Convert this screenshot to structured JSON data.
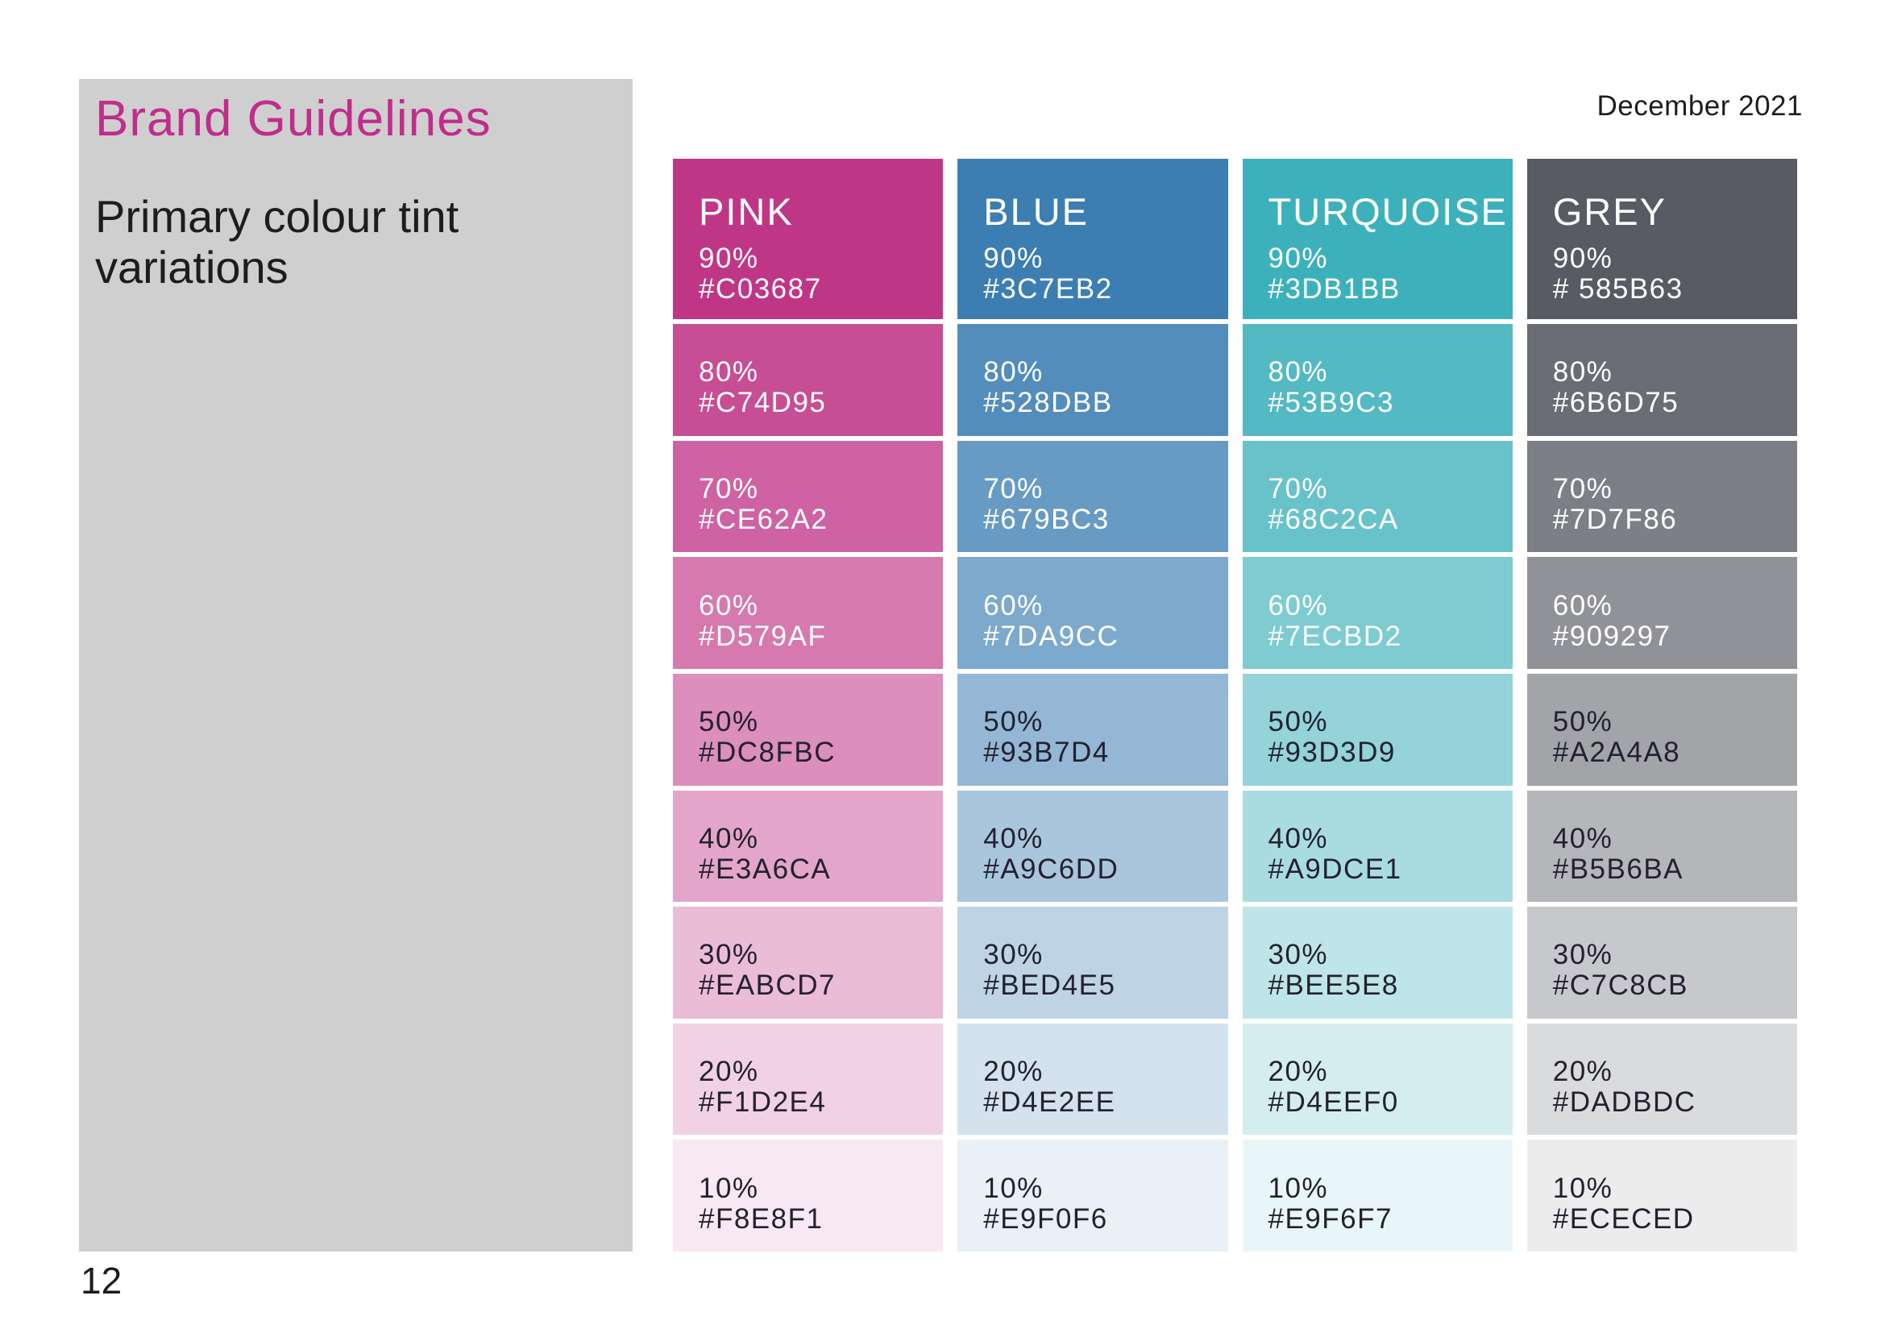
{
  "header": {
    "date": "December 2021"
  },
  "sidebar": {
    "title": "Brand Guidelines",
    "subtitle_line1": "Primary colour tint",
    "subtitle_line2": "variations"
  },
  "footer": {
    "page_number": "12"
  },
  "colors": {
    "accent": "#C02D8C",
    "sidebar_bg": "#D0CFCF",
    "text_dark": "#1D1D1B",
    "swatch_text_light": "#FFFFFF",
    "swatch_text_dark": "#232130"
  },
  "columns": [
    {
      "name": "PINK",
      "tints": [
        {
          "percent": "90%",
          "hex_label": "#C03687",
          "fill": "#C03687",
          "text": "light"
        },
        {
          "percent": "80%",
          "hex_label": "#C74D95",
          "fill": "#C74D95",
          "text": "light"
        },
        {
          "percent": "70%",
          "hex_label": "#CE62A2",
          "fill": "#CE62A2",
          "text": "light"
        },
        {
          "percent": "60%",
          "hex_label": "#D579AF",
          "fill": "#D579AF",
          "text": "light"
        },
        {
          "percent": "50%",
          "hex_label": "#DC8FBC",
          "fill": "#DC8FBC",
          "text": "dark"
        },
        {
          "percent": "40%",
          "hex_label": "#E3A6CA",
          "fill": "#E3A6CA",
          "text": "dark"
        },
        {
          "percent": "30%",
          "hex_label": "#EABCD7",
          "fill": "#EABCD7",
          "text": "dark"
        },
        {
          "percent": "20%",
          "hex_label": "#F1D2E4",
          "fill": "#F1D2E4",
          "text": "dark"
        },
        {
          "percent": "10%",
          "hex_label": "#F8E8F1",
          "fill": "#F8E8F1",
          "text": "dark"
        }
      ]
    },
    {
      "name": "BLUE",
      "tints": [
        {
          "percent": "90%",
          "hex_label": "#3C7EB2",
          "fill": "#3C7EB2",
          "text": "light"
        },
        {
          "percent": "80%",
          "hex_label": "#528DBB",
          "fill": "#528DBB",
          "text": "light"
        },
        {
          "percent": "70%",
          "hex_label": "#679BC3",
          "fill": "#679BC3",
          "text": "light"
        },
        {
          "percent": "60%",
          "hex_label": "#7DA9CC",
          "fill": "#7DA9CC",
          "text": "light"
        },
        {
          "percent": "50%",
          "hex_label": "#93B7D4",
          "fill": "#93B7D4",
          "text": "dark"
        },
        {
          "percent": "40%",
          "hex_label": "#A9C6DD",
          "fill": "#A9C6DD",
          "text": "dark"
        },
        {
          "percent": "30%",
          "hex_label": "#BED4E5",
          "fill": "#BED4E5",
          "text": "dark"
        },
        {
          "percent": "20%",
          "hex_label": "#D4E2EE",
          "fill": "#D4E2EE",
          "text": "dark"
        },
        {
          "percent": "10%",
          "hex_label": "#E9F0F6",
          "fill": "#E9F0F6",
          "text": "dark"
        }
      ]
    },
    {
      "name": "TURQUOISE",
      "tints": [
        {
          "percent": "90%",
          "hex_label": "#3DB1BB",
          "fill": "#3DB1BB",
          "text": "light"
        },
        {
          "percent": "80%",
          "hex_label": "#53B9C3",
          "fill": "#53B9C3",
          "text": "light"
        },
        {
          "percent": "70%",
          "hex_label": "#68C2CA",
          "fill": "#68C2CA",
          "text": "light"
        },
        {
          "percent": "60%",
          "hex_label": "#7ECBD2",
          "fill": "#7ECBD2",
          "text": "light"
        },
        {
          "percent": "50%",
          "hex_label": "#93D3D9",
          "fill": "#93D3D9",
          "text": "dark"
        },
        {
          "percent": "40%",
          "hex_label": "#A9DCE1",
          "fill": "#A9DCE1",
          "text": "dark"
        },
        {
          "percent": "30%",
          "hex_label": "#BEE5E8",
          "fill": "#BEE5E8",
          "text": "dark"
        },
        {
          "percent": "20%",
          "hex_label": "#D4EEF0",
          "fill": "#D4EEF0",
          "text": "dark"
        },
        {
          "percent": "10%",
          "hex_label": "#E9F6F7",
          "fill": "#E9F6F7",
          "text": "dark"
        }
      ]
    },
    {
      "name": "GREY",
      "tints": [
        {
          "percent": "90%",
          "hex_label": "# 585B63",
          "fill": "#585B63",
          "text": "light"
        },
        {
          "percent": "80%",
          "hex_label": "#6B6D75",
          "fill": "#6B6D75",
          "text": "light"
        },
        {
          "percent": "70%",
          "hex_label": "#7D7F86",
          "fill": "#7D7F86",
          "text": "light"
        },
        {
          "percent": "60%",
          "hex_label": "#909297",
          "fill": "#909297",
          "text": "light"
        },
        {
          "percent": "50%",
          "hex_label": "#A2A4A8",
          "fill": "#A2A4A8",
          "text": "dark"
        },
        {
          "percent": "40%",
          "hex_label": "#B5B6BA",
          "fill": "#B5B6BA",
          "text": "dark"
        },
        {
          "percent": "30%",
          "hex_label": "#C7C8CB",
          "fill": "#C7C8CB",
          "text": "dark"
        },
        {
          "percent": "20%",
          "hex_label": "#DADBDC",
          "fill": "#DADBDC",
          "text": "dark"
        },
        {
          "percent": "10%",
          "hex_label": "#ECECED",
          "fill": "#ECECED",
          "text": "dark"
        }
      ]
    }
  ]
}
